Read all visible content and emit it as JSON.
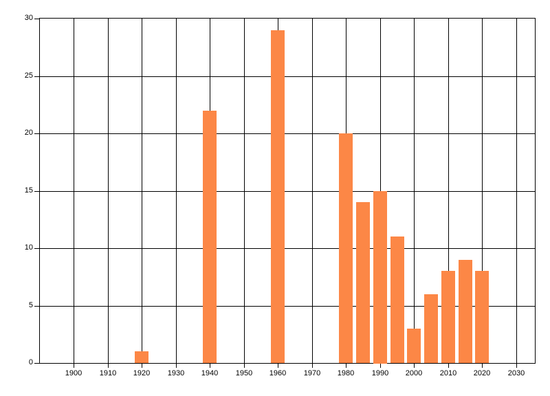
{
  "chart_data": {
    "type": "bar",
    "title": "",
    "xlabel": "",
    "ylabel": "",
    "x": [
      1920,
      1940,
      1960,
      1980,
      1985,
      1990,
      1995,
      2000,
      2005,
      2010,
      2015,
      2020
    ],
    "values": [
      1,
      22,
      29,
      20,
      14,
      15,
      11,
      3,
      6,
      8,
      9,
      8
    ],
    "xlim": [
      1890,
      2035.5
    ],
    "ylim": [
      0,
      30
    ],
    "x_ticks": [
      1900,
      1910,
      1920,
      1930,
      1940,
      1950,
      1960,
      1970,
      1980,
      1990,
      2000,
      2010,
      2020,
      2030
    ],
    "x_tick_labels": [
      "1900",
      "1910",
      "1920",
      "1930",
      "1940",
      "1950",
      "1960",
      "1970",
      "1980",
      "1990",
      "2000",
      "2010",
      "2020",
      "2030"
    ],
    "y_ticks": [
      0,
      5,
      10,
      15,
      20,
      25,
      30
    ],
    "y_tick_labels": [
      "0",
      "5",
      "10",
      "15",
      "20",
      "25",
      "30"
    ],
    "bar_width_years": 4,
    "bar_color": "#fc8746",
    "grid": true,
    "gridline_color": "#000000",
    "axis_color": "#000000",
    "background": "#ffffff",
    "legend": null
  }
}
